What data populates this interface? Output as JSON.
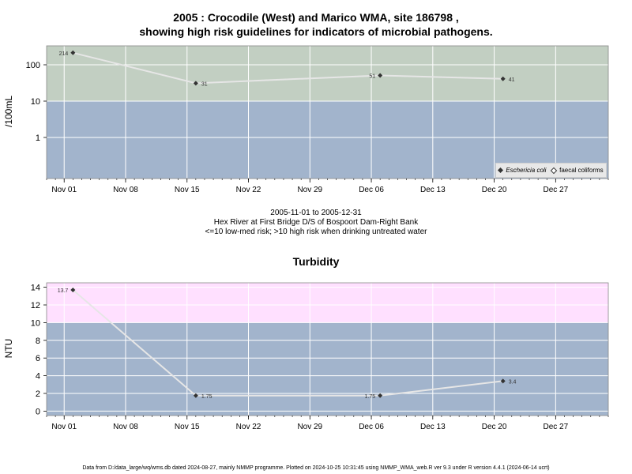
{
  "header": {
    "title_line1": "2005 : Crocodile (West) and Marico WMA, site 186798 ,",
    "title_line2": "showing high risk guidelines for indicators of microbial pathogens."
  },
  "middle_note": {
    "line1": "2005-11-01 to 2005-12-31",
    "line2": "Hex River at First Bridge D/S of Bospoort Dam-Right Bank",
    "line3": "<=10 low-med risk; >10 high risk when drinking untreated water"
  },
  "footer": "Data from D:/data_large/wq/wms.db dated 2024-08-27, mainly NMMP programme. Plotted on 2024-10-25 10:31:45 using NMMP_WMA_web.R ver 9.3 under R version 4.4.1 (2024-06-14 ucrt)",
  "colors": {
    "high_risk_micro": "#c2cfc2",
    "low_risk": "#a2b4cc",
    "high_risk_turb": "#ffe0ff",
    "line": "#e6e6e6",
    "point": "#333333"
  },
  "chart_data": [
    {
      "type": "line",
      "title": "",
      "ylabel": "/100mL",
      "y_scale": "log",
      "y_ticks": [
        1,
        10,
        100
      ],
      "y_tick_labels": [
        "1",
        "10",
        "100"
      ],
      "x_tick_labels": [
        "Nov 01",
        "Nov 08",
        "Nov 15",
        "Nov 22",
        "Nov 29",
        "Dec 06",
        "Dec 13",
        "Dec 20",
        "Dec 27"
      ],
      "x_tick_dates": [
        "2005-11-01",
        "2005-11-08",
        "2005-11-15",
        "2005-11-22",
        "2005-11-29",
        "2005-12-06",
        "2005-12-13",
        "2005-12-20",
        "2005-12-27"
      ],
      "xlim": [
        "2005-10-30",
        "2006-01-02"
      ],
      "guideline": 10,
      "legend": {
        "position": "bottom-right",
        "entries": [
          "Eschericia coli",
          "faecal coliforms"
        ]
      },
      "series": [
        {
          "name": "Eschericia coli",
          "x": [
            "2005-11-02",
            "2005-11-16",
            "2005-12-07",
            "2005-12-21"
          ],
          "y": [
            214,
            31,
            51,
            41
          ],
          "labels": [
            "214",
            "31",
            "51",
            "41"
          ]
        }
      ]
    },
    {
      "type": "line",
      "title": "Turbidity",
      "ylabel": "NTU",
      "y_scale": "linear",
      "ylim": [
        -0.5,
        14.5
      ],
      "y_ticks": [
        0,
        2,
        4,
        6,
        8,
        10,
        12,
        14
      ],
      "y_tick_labels": [
        "0",
        "2",
        "4",
        "6",
        "8",
        "10",
        "12",
        "14"
      ],
      "x_tick_labels": [
        "Nov 01",
        "Nov 08",
        "Nov 15",
        "Nov 22",
        "Nov 29",
        "Dec 06",
        "Dec 13",
        "Dec 20",
        "Dec 27"
      ],
      "x_tick_dates": [
        "2005-11-01",
        "2005-11-08",
        "2005-11-15",
        "2005-11-22",
        "2005-11-29",
        "2005-12-06",
        "2005-12-13",
        "2005-12-20",
        "2005-12-27"
      ],
      "xlim": [
        "2005-10-30",
        "2006-01-02"
      ],
      "guideline": 10,
      "series": [
        {
          "name": "",
          "x": [
            "2005-11-02",
            "2005-11-16",
            "2005-12-07",
            "2005-12-21"
          ],
          "y": [
            13.7,
            1.75,
            1.75,
            3.4
          ],
          "labels": [
            "13.7",
            "1.75",
            "1.75",
            "3.4"
          ]
        }
      ]
    }
  ]
}
